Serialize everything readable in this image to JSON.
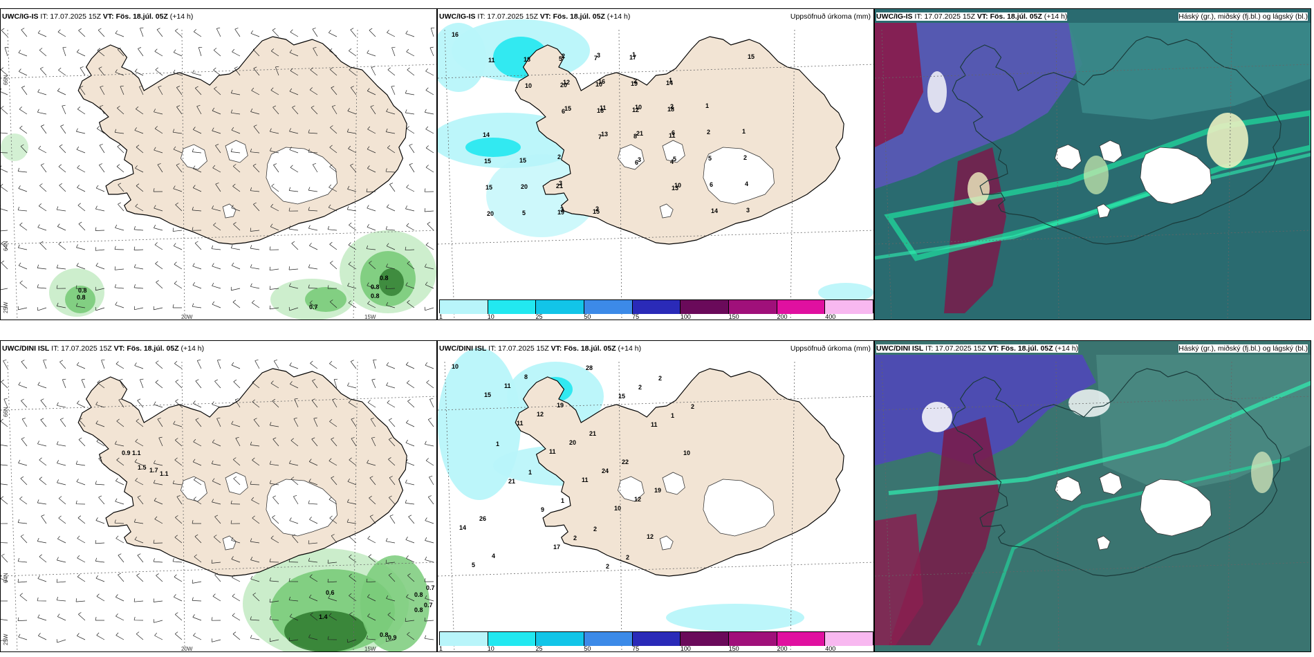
{
  "panels": [
    {
      "id": "p1",
      "model": "UWC/IG-IS",
      "it": "IT: 17.07.2025 15Z",
      "vt": "VT: Fös. 18.júl. 05Z",
      "lead": "(+14 h)",
      "right": ""
    },
    {
      "id": "p2",
      "model": "UWC/IG-IS",
      "it": "IT: 17.07.2025 15Z",
      "vt": "VT: Fös. 18.júl. 05Z",
      "lead": "(+14 h)",
      "right": "Uppsöfnuð úrkoma (mm)"
    },
    {
      "id": "p3",
      "model": "UWC/IG-IS",
      "it": "IT: 17.07.2025 15Z",
      "vt": "VT: Fös. 18.júl. 05Z",
      "lead": "(+14 h)",
      "right": "Háský (gr.), miðský (fj.bl.) og lágský (bl.)"
    },
    {
      "id": "p4",
      "model": "UWC/DINI ISL",
      "it": "IT: 17.07.2025 15Z",
      "vt": "VT: Fös. 18.júl. 05Z",
      "lead": "(+14 h)",
      "right": ""
    },
    {
      "id": "p5",
      "model": "UWC/DINI ISL",
      "it": "IT: 17.07.2025 15Z",
      "vt": "VT: Fös. 18.júl. 05Z",
      "lead": "(+14 h)",
      "right": "Uppsöfnuð úrkoma (mm)"
    },
    {
      "id": "p6",
      "model": "UWC/DINI ISL",
      "it": "IT: 17.07.2025 15Z",
      "vt": "VT: Fös. 18.júl. 05Z",
      "lead": "(+14 h)",
      "right": "Háský (gr.), miðský (fj.bl.) og lágský (bl.)"
    }
  ],
  "grid_labels": {
    "lat66": "66N",
    "lat64": "64N",
    "lon25": "25W",
    "lon20": "20W",
    "lon15": "15W"
  },
  "colorbar": {
    "ticks": [
      "1",
      "10",
      "25",
      "50",
      "75",
      "100",
      "150",
      "200",
      "400"
    ],
    "colors": [
      "#b8f5fa",
      "#22e8f0",
      "#12c5e8",
      "#3c8ae8",
      "#2a2ab8",
      "#6a0a5a",
      "#a0107a",
      "#e010a0",
      "#f8b8f0"
    ]
  },
  "precip_top_labels": [
    "16",
    "11",
    "10",
    "6",
    "7",
    "6",
    "13",
    "20",
    "18",
    "20",
    "16",
    "8",
    "4",
    "15",
    "5",
    "5",
    "10",
    "12",
    "11",
    "15",
    "20",
    "19",
    "7",
    "19",
    "18",
    "14",
    "15",
    "21",
    "15",
    "17",
    "14",
    "15",
    "13",
    "3",
    "10",
    "14",
    "15",
    "12",
    "11",
    "21",
    "5",
    "6",
    "3",
    "2",
    "16",
    "10",
    "6",
    "5",
    "4",
    "3",
    "3",
    "2",
    "2",
    "2",
    "2",
    "3",
    "2",
    "1",
    "1",
    "1",
    "1",
    "2"
  ],
  "precip_bot_labels": [
    "10",
    "15",
    "11",
    "11",
    "11",
    "10",
    "12",
    "5",
    "11",
    "12",
    "20",
    "24",
    "12",
    "14",
    "4",
    "8",
    "19",
    "21",
    "22",
    "19",
    "26",
    "17",
    "28",
    "15",
    "11",
    "10",
    "21",
    "9",
    "2",
    "2",
    "2",
    "1",
    "1",
    "1",
    "1",
    "2",
    "2",
    "2",
    "2"
  ],
  "rain_top_labels": [
    "0.8",
    "0.8",
    "0.7",
    "0.8",
    "0.8",
    "0.8"
  ],
  "rain_bot_labels": [
    "0.9",
    "1.1",
    "1.5",
    "1.7",
    "1.1",
    "0.6",
    "0.8",
    "0.7",
    "0.8",
    "0.7",
    "1.4",
    "0.9",
    "0.8"
  ],
  "colors": {
    "land": "#f2e4d4",
    "ocean": "#ffffff",
    "precip_light": "#b8f5fa",
    "precip_mid": "#22e8f0",
    "rain_light": "#c8ecc8",
    "rain_mid": "#7acb7a",
    "rain_dark": "#2e7a2e"
  }
}
